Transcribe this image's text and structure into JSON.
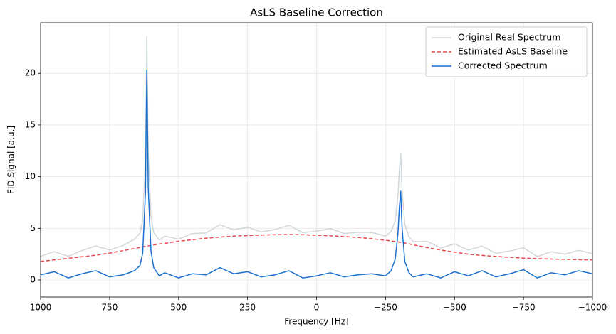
{
  "chart_data": {
    "type": "line",
    "title": "AsLS Baseline Correction",
    "xlabel": "Frequency [Hz]",
    "ylabel": "FID Signal [a.u.]",
    "x": [
      1000,
      950,
      900,
      850,
      800,
      750,
      700,
      660,
      640,
      630,
      620,
      615,
      610,
      600,
      590,
      570,
      550,
      500,
      450,
      400,
      350,
      300,
      250,
      200,
      150,
      100,
      50,
      0,
      -50,
      -100,
      -150,
      -200,
      -250,
      -270,
      -285,
      -295,
      -300,
      -305,
      -310,
      -320,
      -335,
      -350,
      -400,
      -450,
      -500,
      -550,
      -600,
      -650,
      -700,
      -750,
      -800,
      -850,
      -900,
      -950,
      -1000
    ],
    "series": [
      {
        "name": "Original Real Spectrum",
        "color": "#cfd8dc",
        "linestyle": "solid",
        "values": [
          2.3,
          2.75,
          2.3,
          2.85,
          3.3,
          2.9,
          3.35,
          3.95,
          4.55,
          5.8,
          11.75,
          23.58,
          12.3,
          6.15,
          4.6,
          3.88,
          4.25,
          3.95,
          4.5,
          4.55,
          5.35,
          4.85,
          5.1,
          4.65,
          4.88,
          5.3,
          4.58,
          4.73,
          4.98,
          4.5,
          4.62,
          4.6,
          4.25,
          4.68,
          5.72,
          8.18,
          10.66,
          12.24,
          8.62,
          5.38,
          4.2,
          3.7,
          3.75,
          3.1,
          3.5,
          2.9,
          3.28,
          2.58,
          2.8,
          3.12,
          2.27,
          2.73,
          2.5,
          2.87,
          2.55
        ]
      },
      {
        "name": "Estimated AsLS Baseline",
        "color": "#e8474c",
        "linestyle": "dashed",
        "values": [
          1.8,
          1.95,
          2.1,
          2.25,
          2.4,
          2.6,
          2.85,
          3.05,
          3.15,
          3.2,
          3.25,
          3.28,
          3.3,
          3.35,
          3.4,
          3.48,
          3.55,
          3.75,
          3.9,
          4.05,
          4.15,
          4.25,
          4.3,
          4.35,
          4.38,
          4.4,
          4.38,
          4.33,
          4.28,
          4.2,
          4.12,
          4.0,
          3.85,
          3.78,
          3.72,
          3.68,
          3.66,
          3.64,
          3.62,
          3.58,
          3.5,
          3.4,
          3.15,
          2.9,
          2.7,
          2.5,
          2.38,
          2.28,
          2.2,
          2.12,
          2.07,
          2.03,
          2.0,
          1.97,
          1.95
        ]
      },
      {
        "name": "Corrected Spectrum",
        "color": "#1a6fcf",
        "linestyle": "solid",
        "values": [
          0.5,
          0.8,
          0.2,
          0.6,
          0.9,
          0.3,
          0.5,
          0.9,
          1.4,
          2.6,
          8.5,
          20.3,
          9.0,
          2.8,
          1.2,
          0.4,
          0.7,
          0.2,
          0.6,
          0.5,
          1.2,
          0.6,
          0.8,
          0.3,
          0.5,
          0.9,
          0.2,
          0.4,
          0.7,
          0.3,
          0.5,
          0.6,
          0.4,
          0.9,
          2.0,
          4.5,
          7.0,
          8.6,
          5.0,
          1.8,
          0.7,
          0.3,
          0.6,
          0.2,
          0.8,
          0.4,
          0.9,
          0.3,
          0.6,
          1.0,
          0.2,
          0.7,
          0.5,
          0.9,
          0.6
        ]
      }
    ],
    "xlim": [
      1000,
      -1000
    ],
    "xticks": [
      1000,
      750,
      500,
      250,
      0,
      {
        "value": -250,
        "label": "−250"
      },
      {
        "value": -500,
        "label": "−500"
      },
      {
        "value": -750,
        "label": "−750"
      },
      {
        "value": -1000,
        "label": "−1000"
      }
    ],
    "ylim": [
      -1.65,
      24.9
    ],
    "yticks": [
      0,
      5,
      10,
      15,
      20
    ],
    "grid": true,
    "legend": "upper right"
  }
}
